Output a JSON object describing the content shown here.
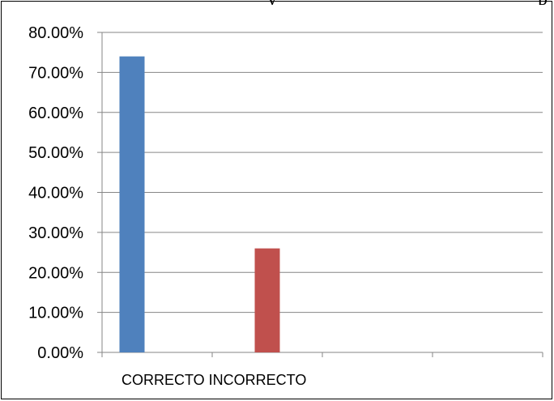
{
  "top_text": {
    "left": "y",
    "right": "p"
  },
  "chart_data": {
    "type": "bar",
    "categories": [
      "CORRECTO",
      "INCORRECTO"
    ],
    "values": [
      74.0,
      26.0
    ],
    "bar_colors": [
      "#4f81bd",
      "#c0504d"
    ],
    "ylim": [
      0,
      80
    ],
    "y_ticks": [
      0,
      10,
      20,
      30,
      40,
      50,
      60,
      70,
      80
    ],
    "y_tick_labels": [
      "0.00%",
      "10.00%",
      "20.00%",
      "30.00%",
      "40.00%",
      "50.00%",
      "60.00%",
      "70.00%",
      "80.00%"
    ],
    "category_label_text": "CORRECTO INCORRECTO",
    "grid": true,
    "title": "",
    "xlabel": "",
    "ylabel": ""
  }
}
